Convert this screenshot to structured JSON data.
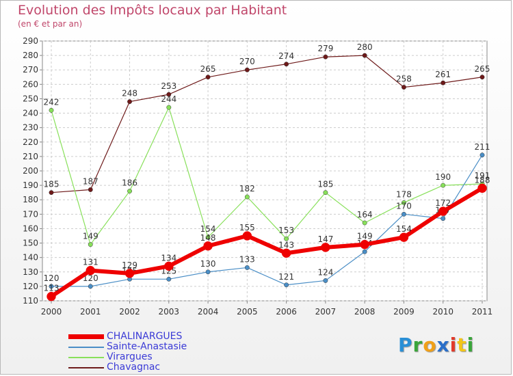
{
  "title": "Evolution des Impôts locaux par Habitant",
  "subtitle": "(en € et par an)",
  "logo": {
    "letters": [
      "P",
      "r",
      "o",
      "x",
      "i",
      "t",
      "i"
    ],
    "colors": [
      "#2a8fd6",
      "#3aa53a",
      "#f0a019",
      "#2a6fc9",
      "#e23a2a",
      "#f2c51a",
      "#3aa53a"
    ]
  },
  "chart_data": {
    "type": "line",
    "title": "Evolution des Impôts locaux par Habitant",
    "subtitle": "(en € et par an)",
    "xlabel": "",
    "ylabel": "",
    "x": [
      "2000",
      "2001",
      "2002",
      "2003",
      "2004",
      "2005",
      "2006",
      "2007",
      "2008",
      "2009",
      "2010",
      "2011"
    ],
    "ylim": [
      110,
      290
    ],
    "yticks": [
      110,
      120,
      130,
      140,
      150,
      160,
      170,
      180,
      190,
      200,
      210,
      220,
      230,
      240,
      250,
      260,
      270,
      280,
      290
    ],
    "grid": true,
    "legend_position": "bottom-left",
    "series": [
      {
        "name": "Chavagnac",
        "color": "#6e1a1a",
        "values": [
          185,
          187,
          248,
          253,
          265,
          270,
          274,
          279,
          280,
          258,
          261,
          265
        ],
        "labels": [
          "185",
          "187",
          "248",
          "253",
          "265",
          "270",
          "274",
          "279",
          "280",
          "258",
          "261",
          "265"
        ]
      },
      {
        "name": "Virargues",
        "color": "#88e05a",
        "values": [
          242,
          149,
          186,
          244,
          154,
          182,
          153,
          185,
          164,
          178,
          190,
          191
        ],
        "labels": [
          "242",
          "149",
          "186",
          "244",
          "154",
          "182",
          "153",
          "185",
          "164",
          "178",
          "190",
          "191"
        ]
      },
      {
        "name": "Sainte-Anastasie",
        "color": "#4a8ec6",
        "values": [
          120,
          120,
          125,
          125,
          130,
          133,
          121,
          124,
          144,
          170,
          167,
          211
        ],
        "labels": [
          "120",
          "120",
          "125",
          "125",
          "130",
          "133",
          "121",
          "124",
          "144",
          "170",
          "167",
          "211"
        ]
      },
      {
        "name": "CHALINARGUES",
        "color": "#ee0000",
        "values": [
          113,
          131,
          129,
          134,
          148,
          155,
          143,
          147,
          149,
          154,
          172,
          188
        ],
        "labels": [
          "113",
          "131",
          "129",
          "134",
          "148",
          "155",
          "143",
          "147",
          "149",
          "154",
          "172",
          "188"
        ]
      }
    ],
    "legend": [
      {
        "name": "CHALINARGUES",
        "color": "#ee0000"
      },
      {
        "name": "Sainte-Anastasie",
        "color": "#4a8ec6"
      },
      {
        "name": "Virargues",
        "color": "#88e05a"
      },
      {
        "name": "Chavagnac",
        "color": "#6e1a1a"
      }
    ]
  }
}
